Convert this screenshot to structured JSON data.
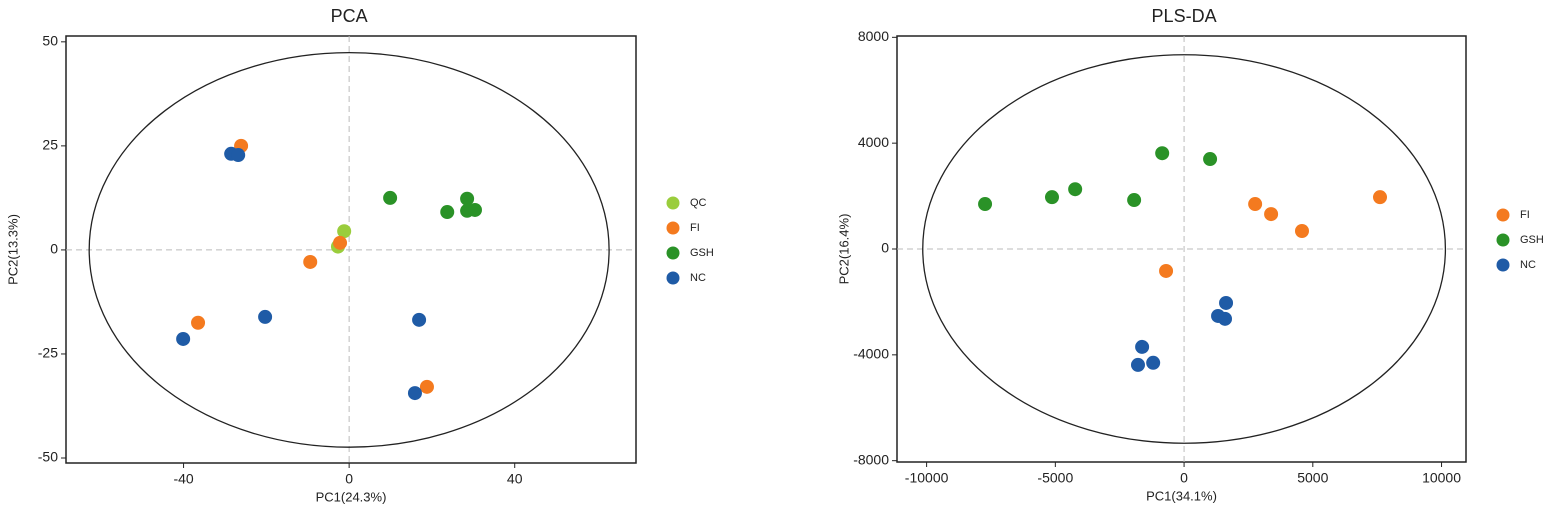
{
  "chart_data": [
    {
      "type": "scatter",
      "title": "PCA",
      "xlabel": "PC1(24.3%)",
      "ylabel": "PC2(13.3%)",
      "xlim": [
        -68.4,
        69.3
      ],
      "ylim": [
        -51.2,
        51.4
      ],
      "xticks": [
        -40,
        0,
        40
      ],
      "yticks": [
        -50,
        -25,
        0,
        25,
        50
      ],
      "zero_lines": true,
      "legend": "right",
      "ellipse": {
        "x": [
          -62.8,
          62.8
        ],
        "y": [
          -47.4,
          47.4
        ]
      },
      "series": [
        {
          "name": "QC",
          "color": "#9acd3c",
          "x": [
            -1.2,
            -2.7
          ],
          "values": [
            4.5,
            0.8
          ]
        },
        {
          "name": "FI",
          "color": "#f47a1f",
          "x": [
            -26.1,
            -9.4,
            -2.2,
            -36.5,
            18.8
          ],
          "values": [
            25.0,
            -2.9,
            1.7,
            -17.5,
            -32.9
          ]
        },
        {
          "name": "GSH",
          "color": "#2a9227",
          "x": [
            9.9,
            23.7,
            28.5,
            28.5,
            30.4
          ],
          "values": [
            12.5,
            9.1,
            12.3,
            9.4,
            9.6
          ]
        },
        {
          "name": "NC",
          "color": "#1f5ba6",
          "x": [
            -28.5,
            -26.8,
            -20.3,
            -40.1,
            16.9,
            15.9
          ],
          "values": [
            23.1,
            22.8,
            -16.1,
            -21.4,
            -16.8,
            -34.4
          ]
        }
      ]
    },
    {
      "type": "scatter",
      "title": "PLS-DA",
      "xlabel": "PC1(34.1%)",
      "ylabel": "PC2(16.4%)",
      "xlim": [
        -11150,
        10950
      ],
      "ylim": [
        -8050,
        8050
      ],
      "xticks": [
        -10000,
        -5000,
        0,
        5000,
        10000
      ],
      "yticks": [
        -8000,
        -4000,
        0,
        4000,
        8000
      ],
      "zero_lines": true,
      "legend": "right",
      "ellipse": {
        "x": [
          -10150,
          10150
        ],
        "y": [
          -7340,
          7340
        ]
      },
      "series": [
        {
          "name": "FI",
          "color": "#f47a1f",
          "x": [
            2760,
            3380,
            4580,
            7610,
            -700
          ],
          "values": [
            1700,
            1320,
            680,
            1960,
            -830
          ]
        },
        {
          "name": "GSH",
          "color": "#2a9227",
          "x": [
            -7730,
            -5130,
            -4230,
            -1940,
            -850,
            1010
          ],
          "values": [
            1700,
            1960,
            2260,
            1850,
            3620,
            3400
          ]
        },
        {
          "name": "NC",
          "color": "#1f5ba6",
          "x": [
            1630,
            1320,
            1590,
            -1630,
            -1790,
            -1200
          ],
          "values": [
            -2040,
            -2530,
            -2640,
            -3700,
            -4380,
            -4300
          ]
        }
      ]
    }
  ]
}
